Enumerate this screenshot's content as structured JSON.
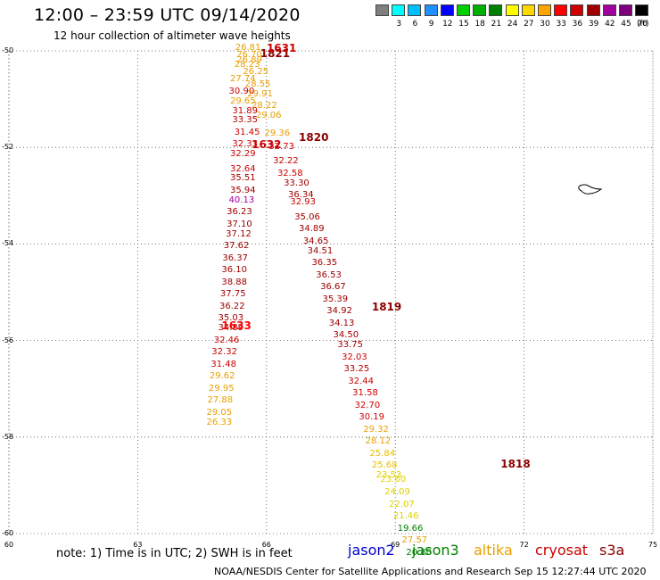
{
  "header": {
    "title": "12:00 – 23:59 UTC 09/14/2020",
    "subtitle": "12 hour collection of altimeter wave heights"
  },
  "color_scale": {
    "unit": "(ft)",
    "swatches": [
      {
        "color": "#808080",
        "label": ""
      },
      {
        "color": "#00ffff",
        "label": "3"
      },
      {
        "color": "#00bfff",
        "label": "6"
      },
      {
        "color": "#1e90ff",
        "label": "9"
      },
      {
        "color": "#0000ff",
        "label": "12"
      },
      {
        "color": "#00d000",
        "label": "15"
      },
      {
        "color": "#00b000",
        "label": "18"
      },
      {
        "color": "#008000",
        "label": "21"
      },
      {
        "color": "#ffff00",
        "label": "24"
      },
      {
        "color": "#ffd700",
        "label": "27"
      },
      {
        "color": "#ffa500",
        "label": "30"
      },
      {
        "color": "#ff0000",
        "label": "33"
      },
      {
        "color": "#d00000",
        "label": "36"
      },
      {
        "color": "#a00000",
        "label": "39"
      },
      {
        "color": "#a000a0",
        "label": "42"
      },
      {
        "color": "#7f007f",
        "label": "45"
      },
      {
        "color": "#000000",
        "label": "70"
      }
    ]
  },
  "axes": {
    "lat_labels": [
      "-50",
      "-52",
      "-54",
      "-56",
      "-58",
      "-60"
    ],
    "lon_labels": [
      "60",
      "63",
      "66",
      "69",
      "72",
      "75"
    ],
    "lat_range": [
      -60,
      -50
    ],
    "lon_range": [
      60,
      75
    ]
  },
  "passes": [
    {
      "label": "1821",
      "lat": -50.05,
      "lon": 66.2,
      "color": "#8b0000"
    },
    {
      "label": "1631",
      "lat": -49.95,
      "lon": 66.35,
      "color": "#cc0000"
    },
    {
      "label": "1820",
      "lat": -51.8,
      "lon": 67.1,
      "color": "#8b0000"
    },
    {
      "label": "1632",
      "lat": -51.95,
      "lon": 66.0,
      "color": "#cc0000"
    },
    {
      "label": "1819",
      "lat": -55.3,
      "lon": 68.8,
      "color": "#8b0000"
    },
    {
      "label": "1633",
      "lat": -55.7,
      "lon": 65.3,
      "color": "#ff0000"
    },
    {
      "label": "1818",
      "lat": -58.55,
      "lon": 71.8,
      "color": "#8b0000"
    }
  ],
  "observations": [
    {
      "v": "26.81",
      "lat": -49.95,
      "lon": 65.57,
      "c": "#e8a000"
    },
    {
      "v": "26.70",
      "lat": -50.1,
      "lon": 65.6,
      "c": "#e8a000"
    },
    {
      "v": "26.89",
      "lat": -50.2,
      "lon": 65.6,
      "c": "#e8a000"
    },
    {
      "v": "28.23",
      "lat": -50.3,
      "lon": 65.55,
      "c": "#e8a000"
    },
    {
      "v": "26.25",
      "lat": -50.45,
      "lon": 65.75,
      "c": "#e8a000"
    },
    {
      "v": "27.74",
      "lat": -50.6,
      "lon": 65.45,
      "c": "#e8a000"
    },
    {
      "v": "28.55",
      "lat": -50.7,
      "lon": 65.8,
      "c": "#e8a000"
    },
    {
      "v": "30.90",
      "lat": -50.85,
      "lon": 65.42,
      "c": "#cc0000"
    },
    {
      "v": "29.91",
      "lat": -50.9,
      "lon": 65.85,
      "c": "#e8a000"
    },
    {
      "v": "29.65",
      "lat": -51.05,
      "lon": 65.45,
      "c": "#e8a000"
    },
    {
      "v": "28.22",
      "lat": -51.15,
      "lon": 65.95,
      "c": "#e8a000"
    },
    {
      "v": "31.89",
      "lat": -51.25,
      "lon": 65.5,
      "c": "#cc0000"
    },
    {
      "v": "29.06",
      "lat": -51.35,
      "lon": 66.05,
      "c": "#e8a000"
    },
    {
      "v": "33.35",
      "lat": -51.45,
      "lon": 65.5,
      "c": "#b00000"
    },
    {
      "v": "31.45",
      "lat": -51.7,
      "lon": 65.55,
      "c": "#cc0000"
    },
    {
      "v": "29.36",
      "lat": -51.72,
      "lon": 66.25,
      "c": "#e8a000"
    },
    {
      "v": "32.33",
      "lat": -51.95,
      "lon": 65.5,
      "c": "#cc0000"
    },
    {
      "v": "32.73",
      "lat": -52.0,
      "lon": 66.35,
      "c": "#cc0000"
    },
    {
      "v": "32.29",
      "lat": -52.15,
      "lon": 65.45,
      "c": "#cc0000"
    },
    {
      "v": "32.22",
      "lat": -52.3,
      "lon": 66.45,
      "c": "#cc0000"
    },
    {
      "v": "32.64",
      "lat": -52.45,
      "lon": 65.45,
      "c": "#cc0000"
    },
    {
      "v": "32.58",
      "lat": -52.55,
      "lon": 66.55,
      "c": "#cc0000"
    },
    {
      "v": "35.51",
      "lat": -52.65,
      "lon": 65.45,
      "c": "#a00000"
    },
    {
      "v": "33.30",
      "lat": -52.75,
      "lon": 66.7,
      "c": "#a00000"
    },
    {
      "v": "35.94",
      "lat": -52.9,
      "lon": 65.45,
      "c": "#a00000"
    },
    {
      "v": "36.34",
      "lat": -53.0,
      "lon": 66.8,
      "c": "#a00000"
    },
    {
      "v": "40.13",
      "lat": -53.1,
      "lon": 65.42,
      "c": "#a000a0"
    },
    {
      "v": "32.93",
      "lat": -53.15,
      "lon": 66.85,
      "c": "#cc0000"
    },
    {
      "v": "36.23",
      "lat": -53.35,
      "lon": 65.37,
      "c": "#a00000"
    },
    {
      "v": "35.06",
      "lat": -53.45,
      "lon": 66.95,
      "c": "#a00000"
    },
    {
      "v": "37.10",
      "lat": -53.6,
      "lon": 65.37,
      "c": "#a00000"
    },
    {
      "v": "34.89",
      "lat": -53.7,
      "lon": 67.05,
      "c": "#a00000"
    },
    {
      "v": "37.12",
      "lat": -53.8,
      "lon": 65.35,
      "c": "#a00000"
    },
    {
      "v": "34.65",
      "lat": -53.95,
      "lon": 67.15,
      "c": "#a00000"
    },
    {
      "v": "37.62",
      "lat": -54.05,
      "lon": 65.3,
      "c": "#a00000"
    },
    {
      "v": "34.51",
      "lat": -54.15,
      "lon": 67.25,
      "c": "#a00000"
    },
    {
      "v": "36.37",
      "lat": -54.3,
      "lon": 65.27,
      "c": "#a00000"
    },
    {
      "v": "36.35",
      "lat": -54.4,
      "lon": 67.35,
      "c": "#a00000"
    },
    {
      "v": "36.10",
      "lat": -54.55,
      "lon": 65.25,
      "c": "#a00000"
    },
    {
      "v": "36.53",
      "lat": -54.65,
      "lon": 67.45,
      "c": "#a00000"
    },
    {
      "v": "38.88",
      "lat": -54.8,
      "lon": 65.25,
      "c": "#a00000"
    },
    {
      "v": "36.67",
      "lat": -54.9,
      "lon": 67.55,
      "c": "#a00000"
    },
    {
      "v": "37.75",
      "lat": -55.05,
      "lon": 65.22,
      "c": "#a00000"
    },
    {
      "v": "35.39",
      "lat": -55.15,
      "lon": 67.6,
      "c": "#a00000"
    },
    {
      "v": "36.22",
      "lat": -55.3,
      "lon": 65.2,
      "c": "#a00000"
    },
    {
      "v": "34.92",
      "lat": -55.4,
      "lon": 67.7,
      "c": "#a00000"
    },
    {
      "v": "35.03",
      "lat": -55.55,
      "lon": 65.17,
      "c": "#a00000"
    },
    {
      "v": "34.13",
      "lat": -55.65,
      "lon": 67.75,
      "c": "#a00000"
    },
    {
      "v": "34.89",
      "lat": -55.75,
      "lon": 65.17,
      "c": "#a00000"
    },
    {
      "v": "34.50",
      "lat": -55.9,
      "lon": 67.85,
      "c": "#a00000"
    },
    {
      "v": "32.46",
      "lat": -56.0,
      "lon": 65.07,
      "c": "#cc0000"
    },
    {
      "v": "33.75",
      "lat": -56.1,
      "lon": 67.95,
      "c": "#a00000"
    },
    {
      "v": "32.32",
      "lat": -56.25,
      "lon": 65.02,
      "c": "#cc0000"
    },
    {
      "v": "32.03",
      "lat": -56.35,
      "lon": 68.05,
      "c": "#cc0000"
    },
    {
      "v": "31.48",
      "lat": -56.5,
      "lon": 65.0,
      "c": "#cc0000"
    },
    {
      "v": "33.25",
      "lat": -56.6,
      "lon": 68.1,
      "c": "#b00000"
    },
    {
      "v": "29.62",
      "lat": -56.75,
      "lon": 64.97,
      "c": "#e8a000"
    },
    {
      "v": "32.44",
      "lat": -56.85,
      "lon": 68.2,
      "c": "#cc0000"
    },
    {
      "v": "29.95",
      "lat": -57.0,
      "lon": 64.95,
      "c": "#e8a000"
    },
    {
      "v": "31.58",
      "lat": -57.1,
      "lon": 68.3,
      "c": "#cc0000"
    },
    {
      "v": "27.88",
      "lat": -57.25,
      "lon": 64.92,
      "c": "#e8a000"
    },
    {
      "v": "32.70",
      "lat": -57.35,
      "lon": 68.35,
      "c": "#cc0000"
    },
    {
      "v": "29.05",
      "lat": -57.5,
      "lon": 64.9,
      "c": "#e8a000"
    },
    {
      "v": "30.19",
      "lat": -57.6,
      "lon": 68.45,
      "c": "#cc0000"
    },
    {
      "v": "26.33",
      "lat": -57.7,
      "lon": 64.9,
      "c": "#e8a000"
    },
    {
      "v": "29.32",
      "lat": -57.85,
      "lon": 68.55,
      "c": "#e8a000"
    },
    {
      "v": "28.12",
      "lat": -58.1,
      "lon": 68.6,
      "c": "#e8a000"
    },
    {
      "v": "25.84",
      "lat": -58.35,
      "lon": 68.7,
      "c": "#e8c000"
    },
    {
      "v": "25.68",
      "lat": -58.6,
      "lon": 68.75,
      "c": "#e8c000"
    },
    {
      "v": "23.53",
      "lat": -58.8,
      "lon": 68.85,
      "c": "#e0d000"
    },
    {
      "v": "23.60",
      "lat": -58.9,
      "lon": 68.95,
      "c": "#e0d000"
    },
    {
      "v": "24.09",
      "lat": -59.15,
      "lon": 69.05,
      "c": "#e0d000"
    },
    {
      "v": "22.07",
      "lat": -59.4,
      "lon": 69.15,
      "c": "#e0d000"
    },
    {
      "v": "21.46",
      "lat": -59.65,
      "lon": 69.25,
      "c": "#e0d000"
    },
    {
      "v": "19.66",
      "lat": -59.9,
      "lon": 69.35,
      "c": "#008000"
    },
    {
      "v": "27.57",
      "lat": -60.15,
      "lon": 69.45,
      "c": "#e8a000"
    },
    {
      "v": "20.80",
      "lat": -60.4,
      "lon": 69.55,
      "c": "#008000"
    }
  ],
  "footer": {
    "note": "note:  1) Time is in UTC; 2) SWH is in feet",
    "satellites": [
      {
        "name": "jason2",
        "color": "#0000cc"
      },
      {
        "name": "jason3",
        "color": "#008000"
      },
      {
        "name": "altika",
        "color": "#e8a000"
      },
      {
        "name": "cryosat",
        "color": "#cc0000"
      },
      {
        "name": "s3a",
        "color": "#8b0000"
      }
    ],
    "credit": "NOAA/NESDIS Center for Satellite Applications and Research    Sep 15 12:27:44 UTC 2020"
  }
}
